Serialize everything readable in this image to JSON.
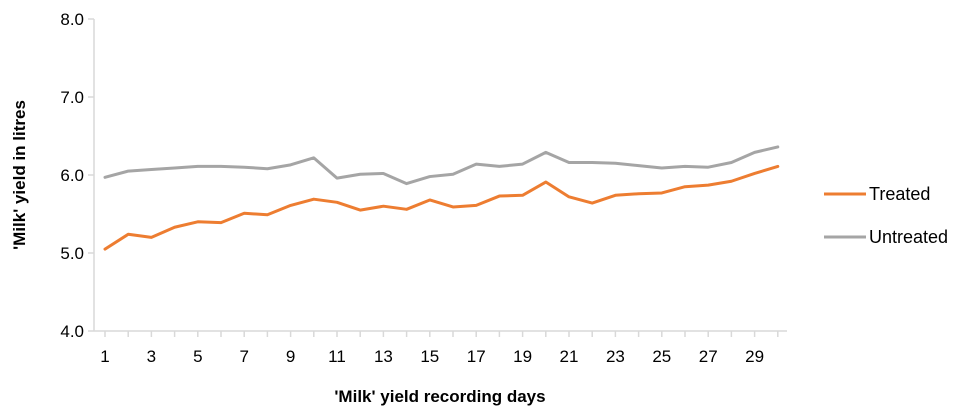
{
  "chart_data": {
    "type": "line",
    "xlabel": "'Milk' yield recording days",
    "ylabel": "'Milk' yield in litres",
    "x": [
      1,
      2,
      3,
      4,
      5,
      6,
      7,
      8,
      9,
      10,
      11,
      12,
      13,
      14,
      15,
      16,
      17,
      18,
      19,
      20,
      21,
      22,
      23,
      24,
      25,
      26,
      27,
      28,
      29,
      30
    ],
    "x_tick_labels": [
      "1",
      "3",
      "5",
      "7",
      "9",
      "11",
      "13",
      "15",
      "17",
      "19",
      "21",
      "23",
      "25",
      "27",
      "29"
    ],
    "y_tick_labels": [
      "4.0",
      "5.0",
      "6.0",
      "7.0",
      "8.0"
    ],
    "ylim": [
      4.0,
      8.0
    ],
    "xlim": [
      1,
      30
    ],
    "grid": false,
    "legend_position": "right",
    "series": [
      {
        "name": "Treated",
        "color": "#ED7D31",
        "values": [
          5.05,
          5.24,
          5.2,
          5.33,
          5.4,
          5.39,
          5.51,
          5.49,
          5.61,
          5.69,
          5.65,
          5.55,
          5.6,
          5.56,
          5.68,
          5.59,
          5.61,
          5.73,
          5.74,
          5.91,
          5.72,
          5.64,
          5.74,
          5.76,
          5.77,
          5.85,
          5.87,
          5.92,
          6.02,
          6.11
        ]
      },
      {
        "name": "Untreated",
        "color": "#A5A5A5",
        "values": [
          5.97,
          6.05,
          6.07,
          6.09,
          6.11,
          6.11,
          6.1,
          6.08,
          6.13,
          6.22,
          5.96,
          6.01,
          6.02,
          5.89,
          5.98,
          6.01,
          6.14,
          6.11,
          6.14,
          6.29,
          6.16,
          6.16,
          6.15,
          6.12,
          6.09,
          6.11,
          6.1,
          6.16,
          6.29,
          6.36
        ]
      }
    ]
  }
}
